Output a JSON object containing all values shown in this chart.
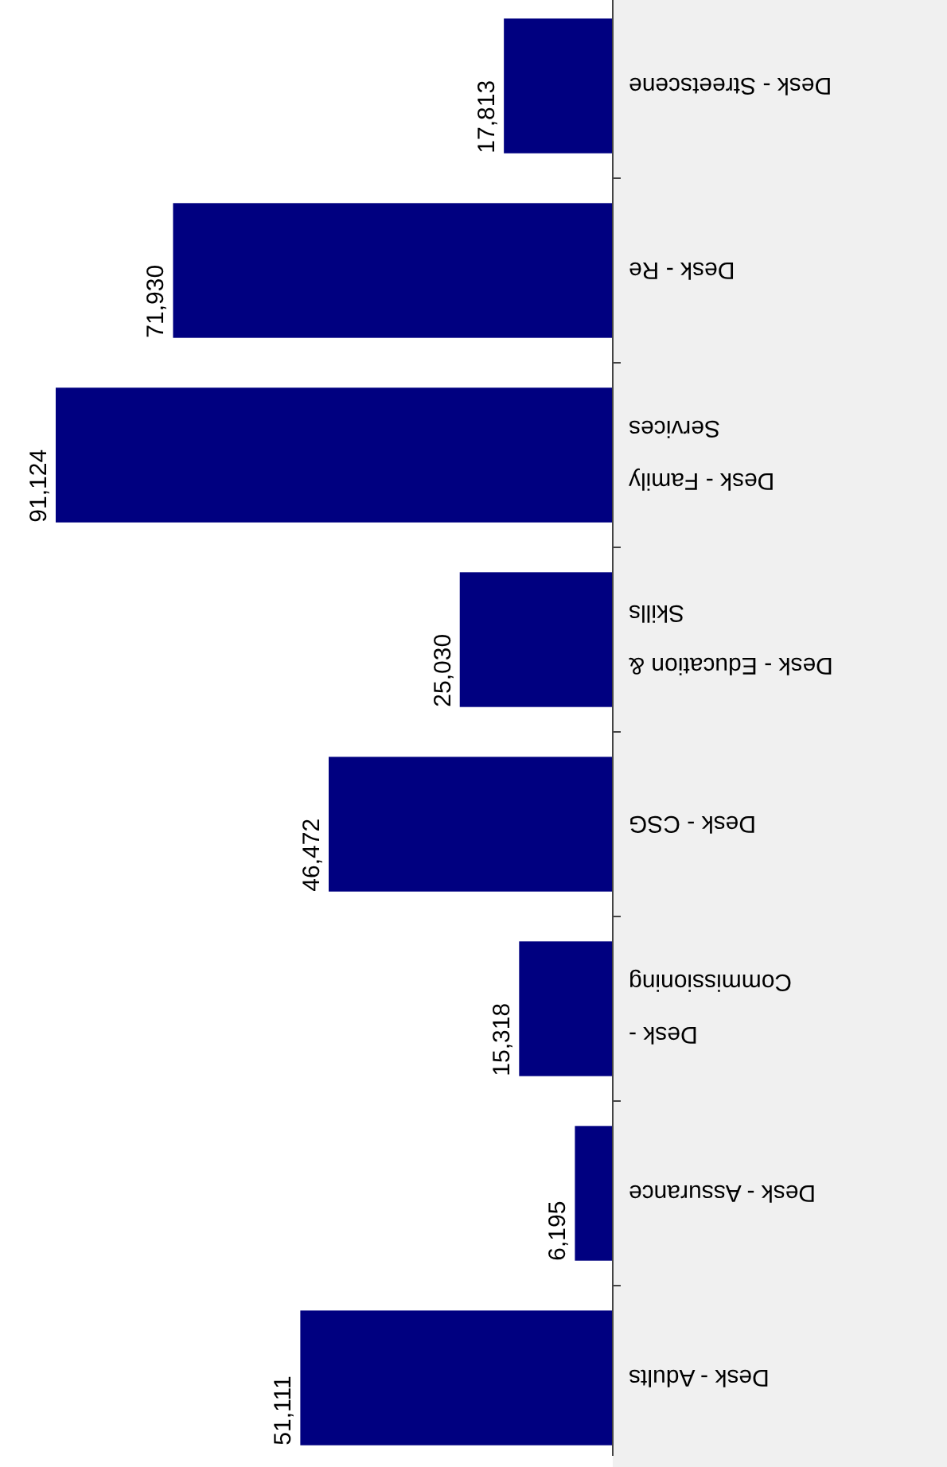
{
  "chart_data": {
    "type": "bar",
    "orientation": "horizontal",
    "categories": [
      "Desk - Streetscene",
      "Desk - Re",
      "Desk - Family Services",
      "Desk - Education & Skills",
      "Desk - CSG",
      "Desk - Commissioning",
      "Desk - Assurance",
      "Desk - Adults"
    ],
    "values": [
      17813,
      71930,
      91124,
      25030,
      46472,
      15318,
      6195,
      51111
    ],
    "color": "#000080",
    "value_labels": [
      "17,813",
      "71,930",
      "91,124",
      "25,030",
      "46,472",
      "15,318",
      "6,195",
      "51,111"
    ]
  }
}
